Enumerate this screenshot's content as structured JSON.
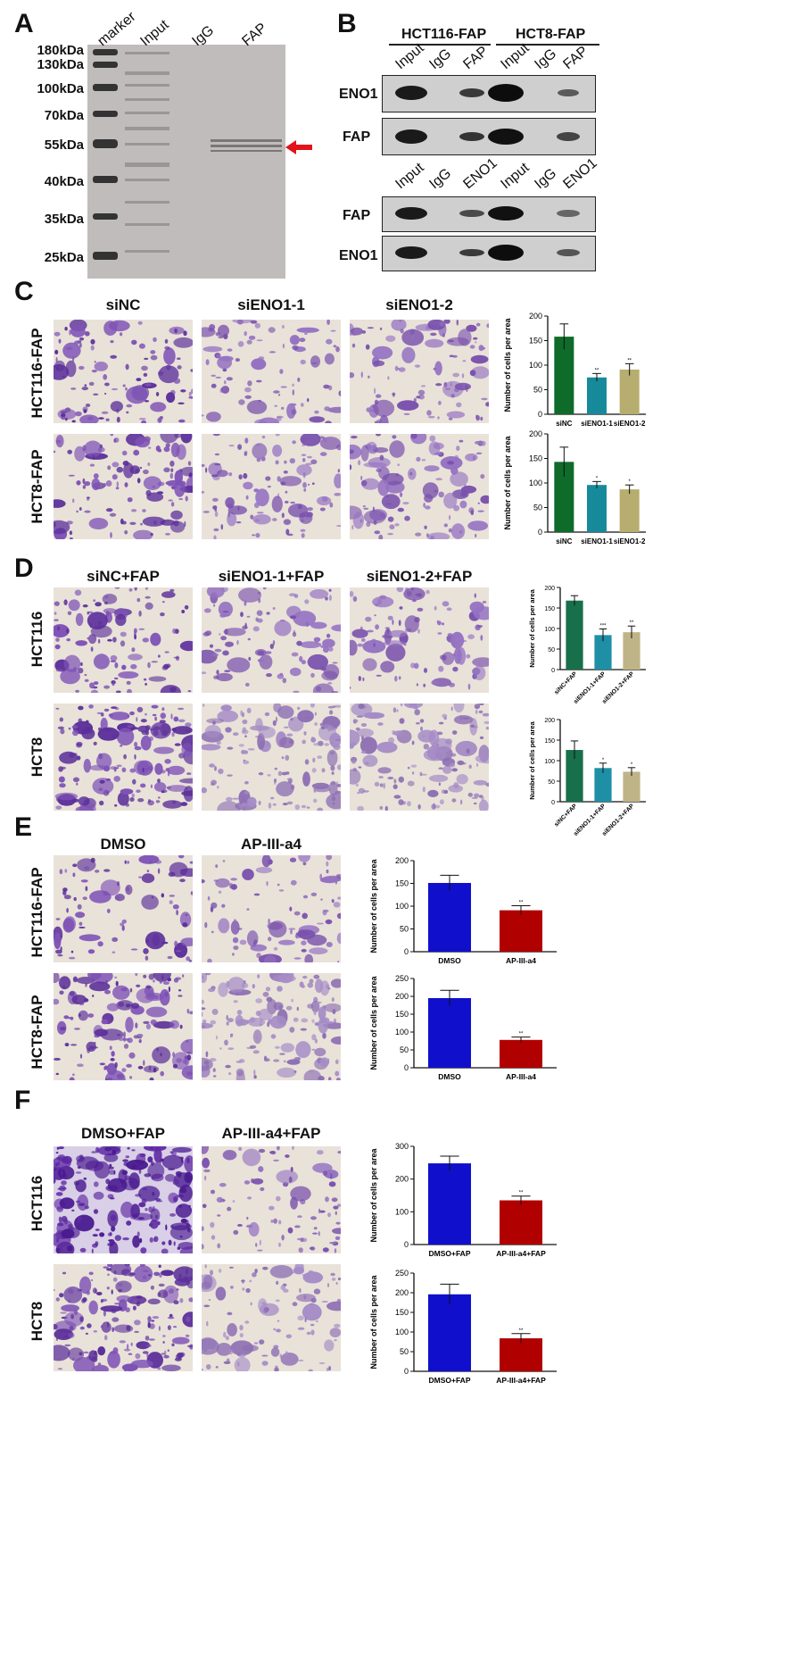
{
  "panels": {
    "A": {
      "letter": "A",
      "lanes": [
        "marker",
        "Input",
        "IgG",
        "FAP"
      ],
      "markers": [
        "180kDa",
        "130kDa",
        "100kDa",
        "70kDa",
        "55kDa",
        "40kDa",
        "35kDa",
        "25kDa"
      ]
    },
    "B": {
      "letter": "B",
      "groups": [
        "HCT116-FAP",
        "HCT8-FAP"
      ],
      "top_lanes": [
        "Input",
        "IgG",
        "FAP",
        "Input",
        "IgG",
        "FAP"
      ],
      "bottom_lanes": [
        "Input",
        "IgG",
        "ENO1",
        "Input",
        "IgG",
        "ENO1"
      ],
      "top_rows": [
        "ENO1",
        "FAP"
      ],
      "bottom_rows": [
        "FAP",
        "ENO1"
      ]
    },
    "C": {
      "letter": "C",
      "columns": [
        "siNC",
        "siENO1-1",
        "siENO1-2"
      ],
      "rows": [
        "HCT116-FAP",
        "HCT8-FAP"
      ]
    },
    "D": {
      "letter": "D",
      "columns": [
        "siNC+FAP",
        "siENO1-1+FAP",
        "siENO1-2+FAP"
      ],
      "rows": [
        "HCT116",
        "HCT8"
      ]
    },
    "E": {
      "letter": "E",
      "columns": [
        "DMSO",
        "AP-III-a4"
      ],
      "rows": [
        "HCT116-FAP",
        "HCT8-FAP"
      ]
    },
    "F": {
      "letter": "F",
      "columns": [
        "DMSO+FAP",
        "AP-III-a4+FAP"
      ],
      "rows": [
        "HCT116",
        "HCT8"
      ]
    }
  },
  "chart_data": [
    {
      "id": "C1",
      "type": "bar",
      "categories": [
        "siNC",
        "siENO1-1",
        "siENO1-2"
      ],
      "values": [
        158,
        75,
        91
      ],
      "errors": [
        26,
        8,
        12
      ],
      "sig": [
        "",
        "**",
        "**"
      ],
      "colors": [
        "#0f6b2a",
        "#168a9b",
        "#b7ad6e"
      ],
      "ylabel": "Number of cells per area",
      "ylim": [
        0,
        200
      ],
      "yticks": [
        0,
        50,
        100,
        150,
        200
      ]
    },
    {
      "id": "C2",
      "type": "bar",
      "categories": [
        "siNC",
        "siENO1-1",
        "siENO1-2"
      ],
      "values": [
        143,
        96,
        87
      ],
      "errors": [
        30,
        7,
        9
      ],
      "sig": [
        "",
        "*",
        "*"
      ],
      "colors": [
        "#0f6b2a",
        "#168a9b",
        "#b7ad6e"
      ],
      "ylabel": "Number of cells per area",
      "ylim": [
        0,
        200
      ],
      "yticks": [
        0,
        50,
        100,
        150,
        200
      ]
    },
    {
      "id": "D1",
      "type": "bar",
      "categories": [
        "siNC+FAP",
        "siENO1-1+FAP",
        "siENO1-2+FAP"
      ],
      "values": [
        168,
        84,
        91
      ],
      "errors": [
        12,
        15,
        15
      ],
      "sig": [
        "",
        "***",
        "**"
      ],
      "colors": [
        "#17704a",
        "#1f8fa6",
        "#bfb487"
      ],
      "ylabel": "Number of cells per area",
      "ylim": [
        0,
        200
      ],
      "yticks": [
        0,
        50,
        100,
        150,
        200
      ]
    },
    {
      "id": "D2",
      "type": "bar",
      "categories": [
        "siNC+FAP",
        "siENO1-1+FAP",
        "siENO1-2+FAP"
      ],
      "values": [
        126,
        82,
        73
      ],
      "errors": [
        22,
        12,
        10
      ],
      "sig": [
        "",
        "*",
        "*"
      ],
      "colors": [
        "#17704a",
        "#1f8fa6",
        "#bfb487"
      ],
      "ylabel": "Number of cells per area",
      "ylim": [
        0,
        200
      ],
      "yticks": [
        0,
        50,
        100,
        150,
        200
      ]
    },
    {
      "id": "E1",
      "type": "bar",
      "categories": [
        "DMSO",
        "AP-III-a4"
      ],
      "values": [
        151,
        91
      ],
      "errors": [
        17,
        10
      ],
      "sig": [
        "",
        "**"
      ],
      "colors": [
        "#1010cc",
        "#b00000"
      ],
      "ylabel": "Number of cells per area",
      "ylim": [
        0,
        200
      ],
      "yticks": [
        0,
        50,
        100,
        150,
        200
      ]
    },
    {
      "id": "E2",
      "type": "bar",
      "categories": [
        "DMSO",
        "AP-III-a4"
      ],
      "values": [
        195,
        78
      ],
      "errors": [
        22,
        8
      ],
      "sig": [
        "",
        "**"
      ],
      "colors": [
        "#1010cc",
        "#b00000"
      ],
      "ylabel": "Number of cells per area",
      "ylim": [
        0,
        250
      ],
      "yticks": [
        0,
        50,
        100,
        150,
        200,
        250
      ]
    },
    {
      "id": "F1",
      "type": "bar",
      "categories": [
        "DMSO+FAP",
        "AP-III-a4+FAP"
      ],
      "values": [
        248,
        135
      ],
      "errors": [
        22,
        13
      ],
      "sig": [
        "",
        "**"
      ],
      "colors": [
        "#1010cc",
        "#b00000"
      ],
      "ylabel": "Number of cells per area",
      "ylim": [
        0,
        300
      ],
      "yticks": [
        0,
        100,
        200,
        300
      ]
    },
    {
      "id": "F2",
      "type": "bar",
      "categories": [
        "DMSO+FAP",
        "AP-III-a4+FAP"
      ],
      "values": [
        196,
        84
      ],
      "errors": [
        26,
        12
      ],
      "sig": [
        "",
        "**"
      ],
      "colors": [
        "#1010cc",
        "#b00000"
      ],
      "ylabel": "Number of cells per area",
      "ylim": [
        0,
        250
      ],
      "yticks": [
        0,
        50,
        100,
        150,
        200,
        250
      ]
    }
  ]
}
